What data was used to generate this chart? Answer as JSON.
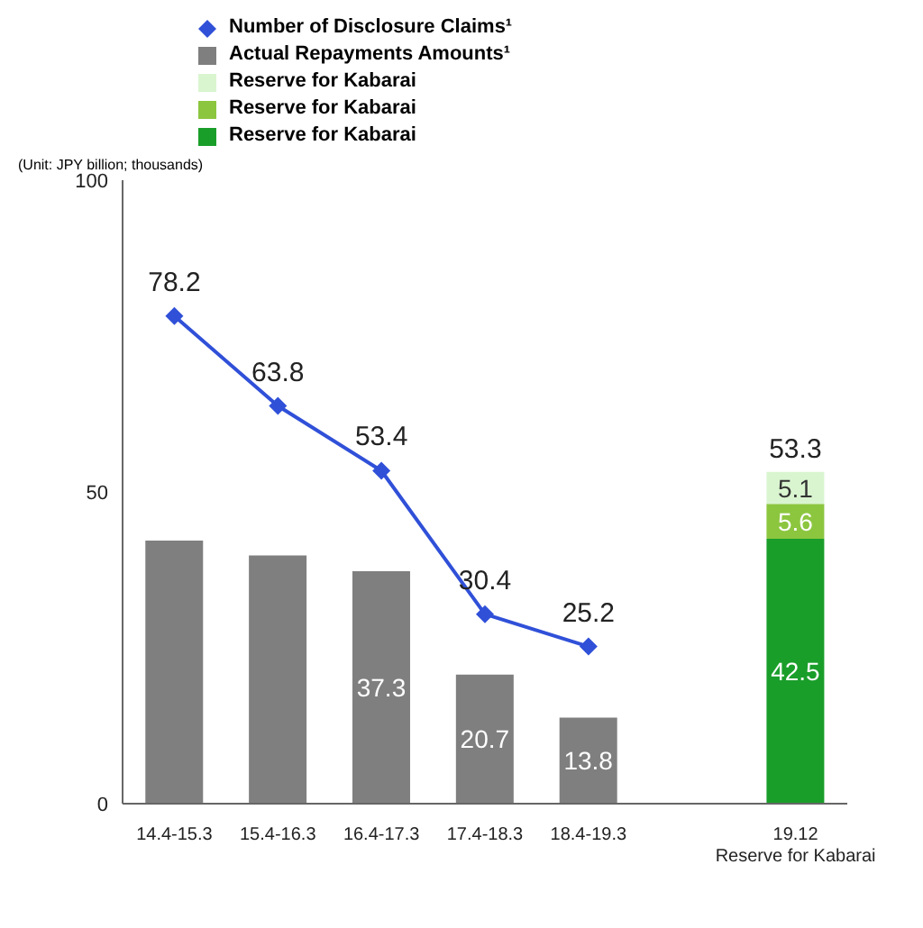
{
  "chart_data": {
    "type": "bar",
    "stacked": true,
    "annotations": [
      "(Unit: JPY billion; thousands)"
    ],
    "categories": [
      "14.4-15.3",
      "15.4-16.3",
      "16.4-17.3",
      "17.4-18.3",
      "18.4-19.3",
      null,
      "19.12\nReserve for Kabarai"
    ],
    "series": [
      {
        "name": "Number of Disclosure Claims¹",
        "type": "line",
        "color": "#3050d8",
        "values": [
          78.2,
          63.8,
          53.4,
          30.4,
          25.2,
          null,
          null
        ],
        "value_labels": [
          "78.2",
          "63.8",
          "53.4",
          "30.4",
          "25.2",
          null,
          null
        ]
      },
      {
        "name": "Actual Repayments Amounts¹",
        "color": "#7f7f7f",
        "values": [
          42.2,
          39.8,
          37.3,
          20.7,
          13.8,
          null,
          null
        ],
        "value_labels": [
          null,
          null,
          "37.3",
          "20.7",
          "13.8",
          null,
          null
        ]
      },
      {
        "name": "Reserve for Kabarai",
        "color": "#1a9e2a",
        "values": [
          null,
          null,
          null,
          null,
          null,
          null,
          42.5
        ],
        "value_labels": [
          null,
          null,
          null,
          null,
          null,
          null,
          "42.5"
        ]
      },
      {
        "name": "Reserve for Kabarai",
        "color": "#8cc63f",
        "values": [
          null,
          null,
          null,
          null,
          null,
          null,
          5.6
        ],
        "value_labels": [
          null,
          null,
          null,
          null,
          null,
          null,
          "5.6"
        ]
      },
      {
        "name": "Reserve for Kabarai",
        "color": "#d9f5d0",
        "values": [
          null,
          null,
          null,
          null,
          null,
          null,
          5.1
        ],
        "value_labels": [
          null,
          null,
          null,
          null,
          null,
          null,
          "5.1"
        ]
      }
    ],
    "totals": [
      null,
      null,
      null,
      null,
      null,
      null,
      "53.3"
    ],
    "ylim": [
      0,
      100
    ],
    "yticks": [
      0,
      50,
      100
    ],
    "grid": false,
    "legend": "top",
    "marker": "diamond"
  }
}
